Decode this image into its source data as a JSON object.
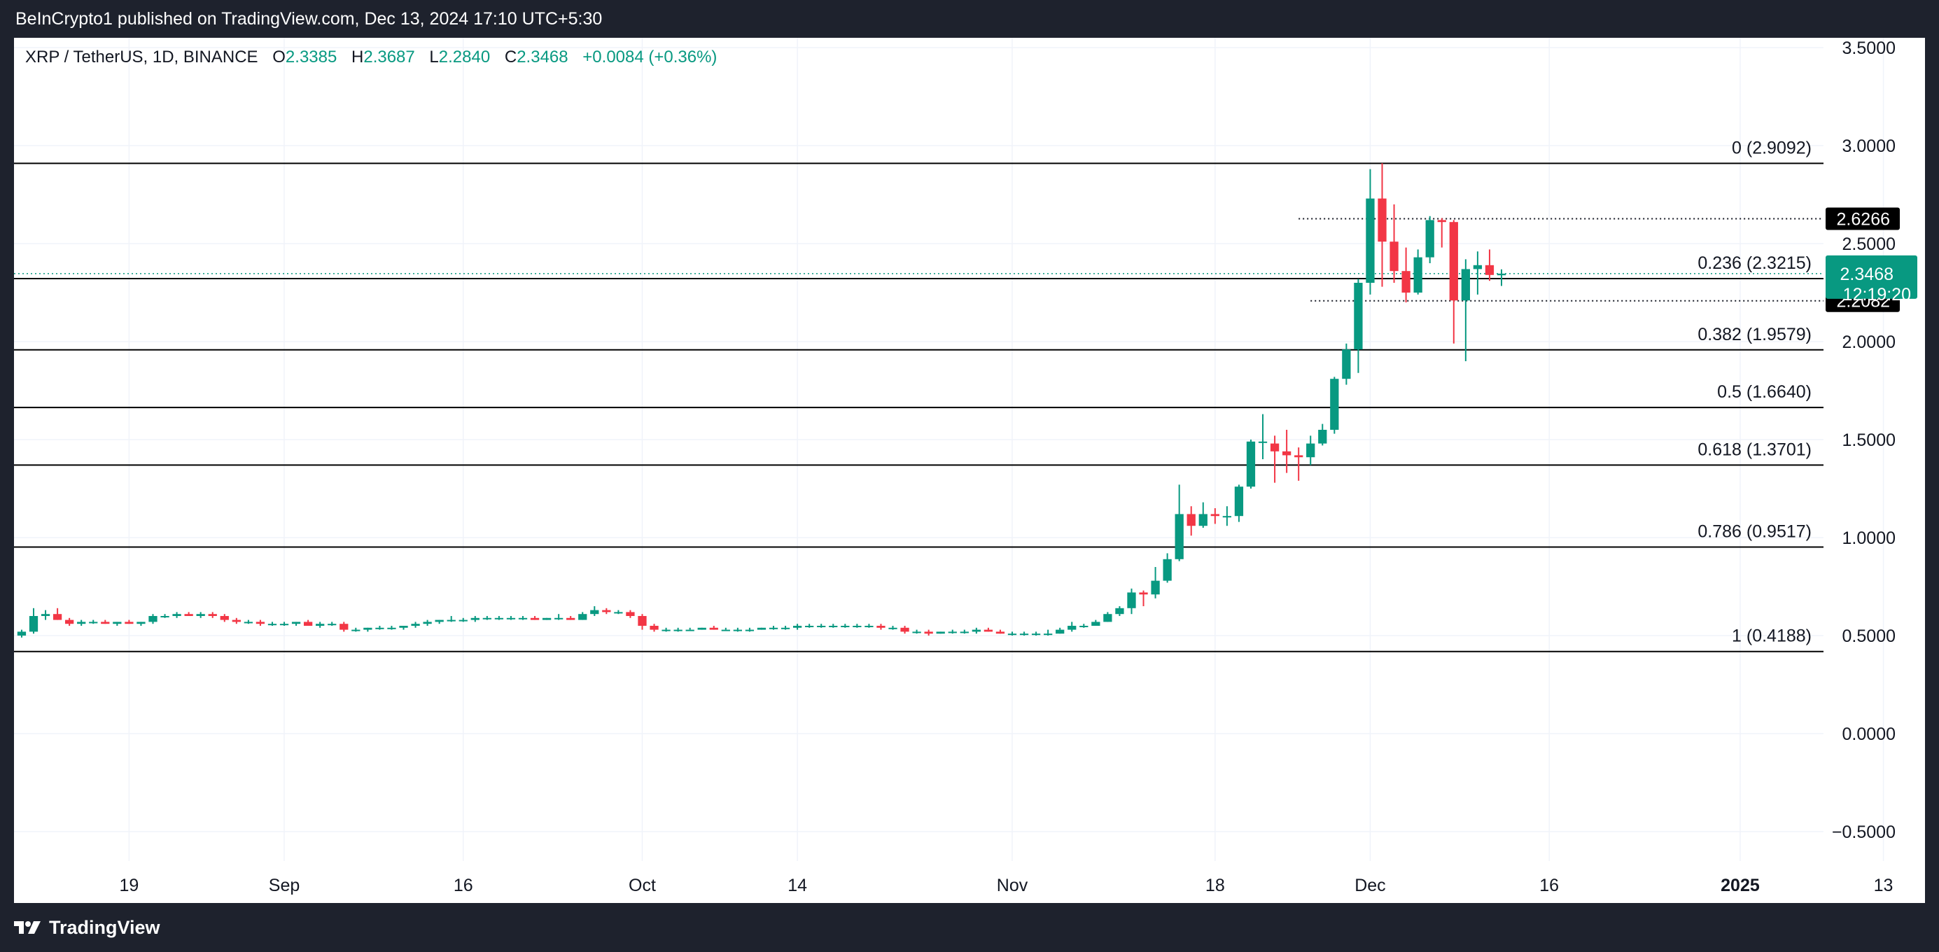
{
  "header": {
    "attribution": "BeInCrypto1 published on TradingView.com, Dec 13, 2024 17:10 UTC+5:30"
  },
  "legend": {
    "symbol": "XRP / TetherUS, 1D, BINANCE",
    "open_label": "O",
    "open": "2.3385",
    "high_label": "H",
    "high": "2.3687",
    "low_label": "L",
    "low": "2.2840",
    "close_label": "C",
    "close": "2.3468",
    "change": "+0.0084 (+0.36%)"
  },
  "footer": {
    "brand": "TradingView"
  },
  "colors": {
    "up": "#089981",
    "down": "#f23645",
    "background": "#ffffff",
    "frame": "#1e222d",
    "grid": "#f0f3fa",
    "text": "#131722"
  },
  "chart_data": {
    "type": "candlestick",
    "symbol": "XRP / TetherUS",
    "interval": "1D",
    "exchange": "BINANCE",
    "ylim": [
      -0.65,
      3.55
    ],
    "y_ticks": [
      "3.5000",
      "3.0000",
      "2.5000",
      "2.0000",
      "1.5000",
      "1.0000",
      "0.5000",
      "0.0000",
      "−0.5000"
    ],
    "y_tick_values": [
      3.5,
      3.0,
      2.5,
      2.0,
      1.5,
      1.0,
      0.5,
      0.0,
      -0.5
    ],
    "x_ticks": [
      {
        "label": "19",
        "date": "2024-08-19"
      },
      {
        "label": "Sep",
        "date": "2024-09-01"
      },
      {
        "label": "16",
        "date": "2024-09-16"
      },
      {
        "label": "Oct",
        "date": "2024-10-01"
      },
      {
        "label": "14",
        "date": "2024-10-14"
      },
      {
        "label": "Nov",
        "date": "2024-11-01"
      },
      {
        "label": "18",
        "date": "2024-11-18"
      },
      {
        "label": "Dec",
        "date": "2024-12-01"
      },
      {
        "label": "16",
        "date": "2024-12-16"
      },
      {
        "label": "2025",
        "date": "2025-01-01",
        "bold": true
      },
      {
        "label": "13",
        "date": "2025-01-13"
      }
    ],
    "grid": true,
    "fib_levels": [
      {
        "level": "0",
        "value": 2.9092,
        "label": "0 (2.9092)"
      },
      {
        "level": "0.236",
        "value": 2.3215,
        "label": "0.236 (2.3215)"
      },
      {
        "level": "0.382",
        "value": 1.9579,
        "label": "0.382 (1.9579)"
      },
      {
        "level": "0.5",
        "value": 1.664,
        "label": "0.5 (1.6640)"
      },
      {
        "level": "0.618",
        "value": 1.3701,
        "label": "0.618 (1.3701)"
      },
      {
        "level": "0.786",
        "value": 0.9517,
        "label": "0.786 (0.9517)"
      },
      {
        "level": "1",
        "value": 0.4188,
        "label": "1 (0.4188)"
      }
    ],
    "horizontal_lines": [
      {
        "value": 2.6266,
        "label": "2.6266",
        "start_date": "2024-11-25"
      },
      {
        "value": 2.2082,
        "label": "2.2082",
        "start_date": "2024-11-26"
      }
    ],
    "last_price": {
      "value": 2.3468,
      "label": "2.3468",
      "countdown": "12:19:20"
    },
    "candles": [
      {
        "d": "2024-08-10",
        "o": 0.5,
        "h": 0.53,
        "l": 0.49,
        "c": 0.52
      },
      {
        "d": "2024-08-11",
        "o": 0.52,
        "h": 0.64,
        "l": 0.51,
        "c": 0.6
      },
      {
        "d": "2024-08-12",
        "o": 0.6,
        "h": 0.63,
        "l": 0.58,
        "c": 0.61
      },
      {
        "d": "2024-08-13",
        "o": 0.61,
        "h": 0.64,
        "l": 0.58,
        "c": 0.58
      },
      {
        "d": "2024-08-14",
        "o": 0.58,
        "h": 0.59,
        "l": 0.55,
        "c": 0.56
      },
      {
        "d": "2024-08-15",
        "o": 0.56,
        "h": 0.58,
        "l": 0.55,
        "c": 0.57
      },
      {
        "d": "2024-08-16",
        "o": 0.57,
        "h": 0.58,
        "l": 0.56,
        "c": 0.57
      },
      {
        "d": "2024-08-17",
        "o": 0.57,
        "h": 0.58,
        "l": 0.56,
        "c": 0.56
      },
      {
        "d": "2024-08-18",
        "o": 0.56,
        "h": 0.57,
        "l": 0.55,
        "c": 0.57
      },
      {
        "d": "2024-08-19",
        "o": 0.57,
        "h": 0.58,
        "l": 0.56,
        "c": 0.56
      },
      {
        "d": "2024-08-20",
        "o": 0.56,
        "h": 0.57,
        "l": 0.55,
        "c": 0.57
      },
      {
        "d": "2024-08-21",
        "o": 0.57,
        "h": 0.61,
        "l": 0.56,
        "c": 0.6
      },
      {
        "d": "2024-08-22",
        "o": 0.6,
        "h": 0.61,
        "l": 0.59,
        "c": 0.6
      },
      {
        "d": "2024-08-23",
        "o": 0.6,
        "h": 0.62,
        "l": 0.59,
        "c": 0.61
      },
      {
        "d": "2024-08-24",
        "o": 0.61,
        "h": 0.62,
        "l": 0.6,
        "c": 0.6
      },
      {
        "d": "2024-08-25",
        "o": 0.6,
        "h": 0.62,
        "l": 0.59,
        "c": 0.61
      },
      {
        "d": "2024-08-26",
        "o": 0.61,
        "h": 0.62,
        "l": 0.59,
        "c": 0.6
      },
      {
        "d": "2024-08-27",
        "o": 0.6,
        "h": 0.61,
        "l": 0.57,
        "c": 0.58
      },
      {
        "d": "2024-08-28",
        "o": 0.58,
        "h": 0.59,
        "l": 0.56,
        "c": 0.57
      },
      {
        "d": "2024-08-29",
        "o": 0.57,
        "h": 0.58,
        "l": 0.56,
        "c": 0.57
      },
      {
        "d": "2024-08-30",
        "o": 0.57,
        "h": 0.58,
        "l": 0.55,
        "c": 0.56
      },
      {
        "d": "2024-08-31",
        "o": 0.56,
        "h": 0.57,
        "l": 0.55,
        "c": 0.56
      },
      {
        "d": "2024-09-01",
        "o": 0.56,
        "h": 0.57,
        "l": 0.55,
        "c": 0.56
      },
      {
        "d": "2024-09-02",
        "o": 0.56,
        "h": 0.57,
        "l": 0.55,
        "c": 0.57
      },
      {
        "d": "2024-09-03",
        "o": 0.57,
        "h": 0.58,
        "l": 0.55,
        "c": 0.55
      },
      {
        "d": "2024-09-04",
        "o": 0.55,
        "h": 0.57,
        "l": 0.54,
        "c": 0.56
      },
      {
        "d": "2024-09-05",
        "o": 0.56,
        "h": 0.57,
        "l": 0.55,
        "c": 0.56
      },
      {
        "d": "2024-09-06",
        "o": 0.56,
        "h": 0.57,
        "l": 0.52,
        "c": 0.53
      },
      {
        "d": "2024-09-07",
        "o": 0.53,
        "h": 0.54,
        "l": 0.52,
        "c": 0.53
      },
      {
        "d": "2024-09-08",
        "o": 0.53,
        "h": 0.54,
        "l": 0.52,
        "c": 0.54
      },
      {
        "d": "2024-09-09",
        "o": 0.54,
        "h": 0.55,
        "l": 0.53,
        "c": 0.54
      },
      {
        "d": "2024-09-10",
        "o": 0.54,
        "h": 0.55,
        "l": 0.53,
        "c": 0.54
      },
      {
        "d": "2024-09-11",
        "o": 0.54,
        "h": 0.55,
        "l": 0.53,
        "c": 0.55
      },
      {
        "d": "2024-09-12",
        "o": 0.55,
        "h": 0.57,
        "l": 0.54,
        "c": 0.56
      },
      {
        "d": "2024-09-13",
        "o": 0.56,
        "h": 0.58,
        "l": 0.55,
        "c": 0.57
      },
      {
        "d": "2024-09-14",
        "o": 0.57,
        "h": 0.58,
        "l": 0.56,
        "c": 0.58
      },
      {
        "d": "2024-09-15",
        "o": 0.58,
        "h": 0.6,
        "l": 0.57,
        "c": 0.58
      },
      {
        "d": "2024-09-16",
        "o": 0.58,
        "h": 0.59,
        "l": 0.57,
        "c": 0.58
      },
      {
        "d": "2024-09-17",
        "o": 0.58,
        "h": 0.6,
        "l": 0.57,
        "c": 0.59
      },
      {
        "d": "2024-09-18",
        "o": 0.59,
        "h": 0.6,
        "l": 0.58,
        "c": 0.59
      },
      {
        "d": "2024-09-19",
        "o": 0.59,
        "h": 0.6,
        "l": 0.58,
        "c": 0.59
      },
      {
        "d": "2024-09-20",
        "o": 0.59,
        "h": 0.6,
        "l": 0.58,
        "c": 0.59
      },
      {
        "d": "2024-09-21",
        "o": 0.59,
        "h": 0.6,
        "l": 0.58,
        "c": 0.59
      },
      {
        "d": "2024-09-22",
        "o": 0.59,
        "h": 0.6,
        "l": 0.58,
        "c": 0.58
      },
      {
        "d": "2024-09-23",
        "o": 0.58,
        "h": 0.59,
        "l": 0.58,
        "c": 0.59
      },
      {
        "d": "2024-09-24",
        "o": 0.59,
        "h": 0.61,
        "l": 0.58,
        "c": 0.59
      },
      {
        "d": "2024-09-25",
        "o": 0.59,
        "h": 0.6,
        "l": 0.58,
        "c": 0.58
      },
      {
        "d": "2024-09-26",
        "o": 0.58,
        "h": 0.62,
        "l": 0.58,
        "c": 0.61
      },
      {
        "d": "2024-09-27",
        "o": 0.61,
        "h": 0.65,
        "l": 0.6,
        "c": 0.63
      },
      {
        "d": "2024-09-28",
        "o": 0.63,
        "h": 0.64,
        "l": 0.61,
        "c": 0.62
      },
      {
        "d": "2024-09-29",
        "o": 0.62,
        "h": 0.63,
        "l": 0.61,
        "c": 0.62
      },
      {
        "d": "2024-09-30",
        "o": 0.62,
        "h": 0.63,
        "l": 0.59,
        "c": 0.6
      },
      {
        "d": "2024-10-01",
        "o": 0.6,
        "h": 0.61,
        "l": 0.53,
        "c": 0.55
      },
      {
        "d": "2024-10-02",
        "o": 0.55,
        "h": 0.56,
        "l": 0.52,
        "c": 0.53
      },
      {
        "d": "2024-10-03",
        "o": 0.53,
        "h": 0.54,
        "l": 0.52,
        "c": 0.53
      },
      {
        "d": "2024-10-04",
        "o": 0.53,
        "h": 0.54,
        "l": 0.52,
        "c": 0.53
      },
      {
        "d": "2024-10-05",
        "o": 0.53,
        "h": 0.54,
        "l": 0.53,
        "c": 0.53
      },
      {
        "d": "2024-10-06",
        "o": 0.53,
        "h": 0.54,
        "l": 0.53,
        "c": 0.54
      },
      {
        "d": "2024-10-07",
        "o": 0.54,
        "h": 0.55,
        "l": 0.53,
        "c": 0.53
      },
      {
        "d": "2024-10-08",
        "o": 0.53,
        "h": 0.54,
        "l": 0.53,
        "c": 0.53
      },
      {
        "d": "2024-10-09",
        "o": 0.53,
        "h": 0.54,
        "l": 0.52,
        "c": 0.53
      },
      {
        "d": "2024-10-10",
        "o": 0.53,
        "h": 0.54,
        "l": 0.52,
        "c": 0.53
      },
      {
        "d": "2024-10-11",
        "o": 0.53,
        "h": 0.54,
        "l": 0.53,
        "c": 0.54
      },
      {
        "d": "2024-10-12",
        "o": 0.54,
        "h": 0.55,
        "l": 0.53,
        "c": 0.54
      },
      {
        "d": "2024-10-13",
        "o": 0.54,
        "h": 0.55,
        "l": 0.53,
        "c": 0.54
      },
      {
        "d": "2024-10-14",
        "o": 0.54,
        "h": 0.56,
        "l": 0.53,
        "c": 0.55
      },
      {
        "d": "2024-10-15",
        "o": 0.55,
        "h": 0.56,
        "l": 0.54,
        "c": 0.55
      },
      {
        "d": "2024-10-16",
        "o": 0.55,
        "h": 0.56,
        "l": 0.54,
        "c": 0.55
      },
      {
        "d": "2024-10-17",
        "o": 0.55,
        "h": 0.56,
        "l": 0.54,
        "c": 0.55
      },
      {
        "d": "2024-10-18",
        "o": 0.55,
        "h": 0.56,
        "l": 0.54,
        "c": 0.55
      },
      {
        "d": "2024-10-19",
        "o": 0.55,
        "h": 0.56,
        "l": 0.54,
        "c": 0.55
      },
      {
        "d": "2024-10-20",
        "o": 0.55,
        "h": 0.56,
        "l": 0.54,
        "c": 0.55
      },
      {
        "d": "2024-10-21",
        "o": 0.55,
        "h": 0.56,
        "l": 0.53,
        "c": 0.54
      },
      {
        "d": "2024-10-22",
        "o": 0.54,
        "h": 0.55,
        "l": 0.53,
        "c": 0.54
      },
      {
        "d": "2024-10-23",
        "o": 0.54,
        "h": 0.55,
        "l": 0.51,
        "c": 0.52
      },
      {
        "d": "2024-10-24",
        "o": 0.52,
        "h": 0.53,
        "l": 0.51,
        "c": 0.52
      },
      {
        "d": "2024-10-25",
        "o": 0.52,
        "h": 0.53,
        "l": 0.5,
        "c": 0.51
      },
      {
        "d": "2024-10-26",
        "o": 0.51,
        "h": 0.52,
        "l": 0.51,
        "c": 0.52
      },
      {
        "d": "2024-10-27",
        "o": 0.52,
        "h": 0.53,
        "l": 0.51,
        "c": 0.52
      },
      {
        "d": "2024-10-28",
        "o": 0.52,
        "h": 0.53,
        "l": 0.51,
        "c": 0.52
      },
      {
        "d": "2024-10-29",
        "o": 0.52,
        "h": 0.54,
        "l": 0.51,
        "c": 0.53
      },
      {
        "d": "2024-10-30",
        "o": 0.53,
        "h": 0.54,
        "l": 0.52,
        "c": 0.52
      },
      {
        "d": "2024-10-31",
        "o": 0.52,
        "h": 0.53,
        "l": 0.51,
        "c": 0.51
      },
      {
        "d": "2024-11-01",
        "o": 0.51,
        "h": 0.52,
        "l": 0.5,
        "c": 0.51
      },
      {
        "d": "2024-11-02",
        "o": 0.51,
        "h": 0.52,
        "l": 0.5,
        "c": 0.51
      },
      {
        "d": "2024-11-03",
        "o": 0.51,
        "h": 0.52,
        "l": 0.5,
        "c": 0.51
      },
      {
        "d": "2024-11-04",
        "o": 0.51,
        "h": 0.53,
        "l": 0.5,
        "c": 0.51
      },
      {
        "d": "2024-11-05",
        "o": 0.51,
        "h": 0.54,
        "l": 0.51,
        "c": 0.53
      },
      {
        "d": "2024-11-06",
        "o": 0.53,
        "h": 0.57,
        "l": 0.52,
        "c": 0.55
      },
      {
        "d": "2024-11-07",
        "o": 0.55,
        "h": 0.56,
        "l": 0.54,
        "c": 0.55
      },
      {
        "d": "2024-11-08",
        "o": 0.55,
        "h": 0.58,
        "l": 0.55,
        "c": 0.57
      },
      {
        "d": "2024-11-09",
        "o": 0.57,
        "h": 0.62,
        "l": 0.57,
        "c": 0.61
      },
      {
        "d": "2024-11-10",
        "o": 0.61,
        "h": 0.65,
        "l": 0.6,
        "c": 0.64
      },
      {
        "d": "2024-11-11",
        "o": 0.64,
        "h": 0.74,
        "l": 0.61,
        "c": 0.72
      },
      {
        "d": "2024-11-12",
        "o": 0.72,
        "h": 0.73,
        "l": 0.65,
        "c": 0.71
      },
      {
        "d": "2024-11-13",
        "o": 0.71,
        "h": 0.85,
        "l": 0.69,
        "c": 0.78
      },
      {
        "d": "2024-11-14",
        "o": 0.78,
        "h": 0.92,
        "l": 0.77,
        "c": 0.89
      },
      {
        "d": "2024-11-15",
        "o": 0.89,
        "h": 1.27,
        "l": 0.88,
        "c": 1.12
      },
      {
        "d": "2024-11-16",
        "o": 1.12,
        "h": 1.16,
        "l": 1.01,
        "c": 1.06
      },
      {
        "d": "2024-11-17",
        "o": 1.06,
        "h": 1.18,
        "l": 1.05,
        "c": 1.12
      },
      {
        "d": "2024-11-18",
        "o": 1.12,
        "h": 1.15,
        "l": 1.07,
        "c": 1.11
      },
      {
        "d": "2024-11-19",
        "o": 1.11,
        "h": 1.16,
        "l": 1.06,
        "c": 1.11
      },
      {
        "d": "2024-11-20",
        "o": 1.11,
        "h": 1.27,
        "l": 1.08,
        "c": 1.26
      },
      {
        "d": "2024-11-21",
        "o": 1.26,
        "h": 1.5,
        "l": 1.25,
        "c": 1.49
      },
      {
        "d": "2024-11-22",
        "o": 1.49,
        "h": 1.63,
        "l": 1.4,
        "c": 1.49
      },
      {
        "d": "2024-11-23",
        "o": 1.48,
        "h": 1.52,
        "l": 1.28,
        "c": 1.44
      },
      {
        "d": "2024-11-24",
        "o": 1.44,
        "h": 1.55,
        "l": 1.33,
        "c": 1.42
      },
      {
        "d": "2024-11-25",
        "o": 1.42,
        "h": 1.46,
        "l": 1.29,
        "c": 1.41
      },
      {
        "d": "2024-11-26",
        "o": 1.41,
        "h": 1.52,
        "l": 1.37,
        "c": 1.48
      },
      {
        "d": "2024-11-27",
        "o": 1.48,
        "h": 1.58,
        "l": 1.47,
        "c": 1.55
      },
      {
        "d": "2024-11-28",
        "o": 1.55,
        "h": 1.82,
        "l": 1.53,
        "c": 1.81
      },
      {
        "d": "2024-11-29",
        "o": 1.81,
        "h": 1.99,
        "l": 1.78,
        "c": 1.96
      },
      {
        "d": "2024-11-30",
        "o": 1.96,
        "h": 2.32,
        "l": 1.84,
        "c": 2.3
      },
      {
        "d": "2024-12-01",
        "o": 2.3,
        "h": 2.88,
        "l": 2.24,
        "c": 2.73
      },
      {
        "d": "2024-12-02",
        "o": 2.73,
        "h": 2.91,
        "l": 2.28,
        "c": 2.51
      },
      {
        "d": "2024-12-03",
        "o": 2.51,
        "h": 2.7,
        "l": 2.3,
        "c": 2.36
      },
      {
        "d": "2024-12-04",
        "o": 2.36,
        "h": 2.48,
        "l": 2.2,
        "c": 2.25
      },
      {
        "d": "2024-12-05",
        "o": 2.25,
        "h": 2.47,
        "l": 2.24,
        "c": 2.43
      },
      {
        "d": "2024-12-06",
        "o": 2.43,
        "h": 2.64,
        "l": 2.4,
        "c": 2.62
      },
      {
        "d": "2024-12-07",
        "o": 2.62,
        "h": 2.63,
        "l": 2.48,
        "c": 2.61
      },
      {
        "d": "2024-12-08",
        "o": 2.61,
        "h": 2.62,
        "l": 1.99,
        "c": 2.21
      },
      {
        "d": "2024-12-09",
        "o": 2.21,
        "h": 2.42,
        "l": 1.9,
        "c": 2.37
      },
      {
        "d": "2024-12-10",
        "o": 2.37,
        "h": 2.46,
        "l": 2.24,
        "c": 2.39
      },
      {
        "d": "2024-12-11",
        "o": 2.39,
        "h": 2.47,
        "l": 2.31,
        "c": 2.34
      },
      {
        "d": "2024-12-12",
        "o": 2.3385,
        "h": 2.3687,
        "l": 2.284,
        "c": 2.3468
      }
    ]
  }
}
